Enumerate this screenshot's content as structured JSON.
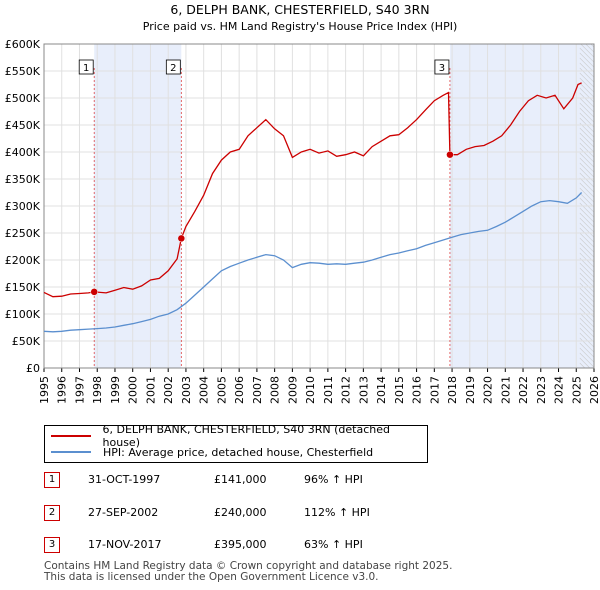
{
  "chart_data": {
    "type": "line",
    "title": "6, DELPH BANK, CHESTERFIELD, S40 3RN",
    "subtitle": "Price paid vs. HM Land Registry's House Price Index (HPI)",
    "ylim": [
      0,
      600000
    ],
    "xlim": [
      1995,
      2026
    ],
    "yticks": [
      0,
      50000,
      100000,
      150000,
      200000,
      250000,
      300000,
      350000,
      400000,
      450000,
      500000,
      550000,
      600000
    ],
    "ytick_labels": [
      "£0",
      "£50K",
      "£100K",
      "£150K",
      "£200K",
      "£250K",
      "£300K",
      "£350K",
      "£400K",
      "£450K",
      "£500K",
      "£550K",
      "£600K"
    ],
    "xticks": [
      1995,
      1996,
      1997,
      1998,
      1999,
      2000,
      2001,
      2002,
      2003,
      2004,
      2005,
      2006,
      2007,
      2008,
      2009,
      2010,
      2011,
      2012,
      2013,
      2014,
      2015,
      2016,
      2017,
      2018,
      2019,
      2020,
      2021,
      2022,
      2023,
      2024,
      2025,
      2026
    ],
    "xtick_labels": [
      "1995",
      "1996",
      "1997",
      "1998",
      "1999",
      "2000",
      "2001",
      "2002",
      "2003",
      "2004",
      "2005",
      "2006",
      "2007",
      "2008",
      "2009",
      "2010",
      "2011",
      "2012",
      "2013",
      "2014",
      "2015",
      "2016",
      "2017",
      "2018",
      "2019",
      "2020",
      "2021",
      "2022",
      "2023",
      "2024",
      "2025",
      "2026"
    ],
    "series": [
      {
        "name": "6, DELPH BANK, CHESTERFIELD, S40 3RN (detached house)",
        "color": "#cc0000",
        "x": [
          1995.0,
          1995.5,
          1996.0,
          1996.5,
          1997.0,
          1997.5,
          1997.83,
          1998.5,
          1999.0,
          1999.5,
          2000.0,
          2000.5,
          2001.0,
          2001.5,
          2002.0,
          2002.5,
          2002.74,
          2003.0,
          2003.5,
          2004.0,
          2004.5,
          2005.0,
          2005.5,
          2006.0,
          2006.5,
          2007.0,
          2007.5,
          2008.0,
          2008.5,
          2009.0,
          2009.5,
          2010.0,
          2010.5,
          2011.0,
          2011.5,
          2012.0,
          2012.5,
          2013.0,
          2013.5,
          2014.0,
          2014.5,
          2015.0,
          2015.5,
          2016.0,
          2016.5,
          2017.0,
          2017.5,
          2017.8,
          2017.88,
          2018.3,
          2018.8,
          2019.3,
          2019.8,
          2020.3,
          2020.8,
          2021.3,
          2021.8,
          2022.3,
          2022.8,
          2023.3,
          2023.8,
          2024.3,
          2024.8,
          2025.1,
          2025.3
        ],
        "values": [
          140000,
          132000,
          133000,
          137000,
          138000,
          139000,
          141000,
          139000,
          144000,
          149000,
          146000,
          152000,
          163000,
          166000,
          180000,
          202000,
          240000,
          262000,
          290000,
          320000,
          360000,
          385000,
          400000,
          405000,
          430000,
          445000,
          460000,
          443000,
          430000,
          390000,
          400000,
          405000,
          398000,
          402000,
          392000,
          395000,
          400000,
          393000,
          410000,
          420000,
          430000,
          432000,
          445000,
          460000,
          478000,
          495000,
          505000,
          510000,
          395000,
          395000,
          405000,
          410000,
          412000,
          420000,
          430000,
          450000,
          475000,
          495000,
          505000,
          500000,
          505000,
          480000,
          500000,
          525000,
          528000
        ]
      },
      {
        "name": "HPI: Average price, detached house, Chesterfield",
        "color": "#5b8fcf",
        "x": [
          1995.0,
          1995.5,
          1996.0,
          1996.5,
          1997.0,
          1997.5,
          1998.0,
          1998.5,
          1999.0,
          1999.5,
          2000.0,
          2000.5,
          2001.0,
          2001.5,
          2002.0,
          2002.5,
          2003.0,
          2003.5,
          2004.0,
          2004.5,
          2005.0,
          2005.5,
          2006.0,
          2006.5,
          2007.0,
          2007.5,
          2008.0,
          2008.5,
          2009.0,
          2009.5,
          2010.0,
          2010.5,
          2011.0,
          2011.5,
          2012.0,
          2012.5,
          2013.0,
          2013.5,
          2014.0,
          2014.5,
          2015.0,
          2015.5,
          2016.0,
          2016.5,
          2017.0,
          2017.5,
          2018.0,
          2018.5,
          2019.0,
          2019.5,
          2020.0,
          2020.5,
          2021.0,
          2021.5,
          2022.0,
          2022.5,
          2023.0,
          2023.5,
          2024.0,
          2024.5,
          2025.0,
          2025.3
        ],
        "values": [
          68000,
          67000,
          68000,
          70000,
          71000,
          72000,
          73000,
          74000,
          76000,
          79000,
          82000,
          86000,
          90000,
          96000,
          100000,
          108000,
          120000,
          135000,
          150000,
          165000,
          180000,
          188000,
          194000,
          200000,
          205000,
          210000,
          208000,
          200000,
          186000,
          192000,
          195000,
          194000,
          192000,
          193000,
          192000,
          194000,
          196000,
          200000,
          205000,
          210000,
          213000,
          217000,
          221000,
          227000,
          232000,
          237000,
          242000,
          247000,
          250000,
          253000,
          255000,
          262000,
          270000,
          280000,
          290000,
          300000,
          308000,
          310000,
          308000,
          305000,
          315000,
          325000
        ]
      }
    ],
    "markers": [
      {
        "label": "1",
        "x": 1997.83,
        "y": 141000
      },
      {
        "label": "2",
        "x": 2002.74,
        "y": 240000
      },
      {
        "label": "3",
        "x": 2017.88,
        "y": 395000
      }
    ],
    "shaded_regions": [
      [
        1997.83,
        2002.74
      ],
      [
        2017.88,
        2026
      ]
    ]
  },
  "legend": {
    "property_label": "6, DELPH BANK, CHESTERFIELD, S40 3RN (detached house)",
    "hpi_label": "HPI: Average price, detached house, Chesterfield",
    "property_color": "#cc0000",
    "hpi_color": "#5b8fcf"
  },
  "sales": [
    {
      "num": "1",
      "date": "31-OCT-1997",
      "price": "£141,000",
      "hpi": "96% ↑ HPI"
    },
    {
      "num": "2",
      "date": "27-SEP-2002",
      "price": "£240,000",
      "hpi": "112% ↑ HPI"
    },
    {
      "num": "3",
      "date": "17-NOV-2017",
      "price": "£395,000",
      "hpi": "63% ↑ HPI"
    }
  ],
  "footer": {
    "line1": "Contains HM Land Registry data © Crown copyright and database right 2025.",
    "line2": "This data is licensed under the Open Government Licence v3.0."
  }
}
